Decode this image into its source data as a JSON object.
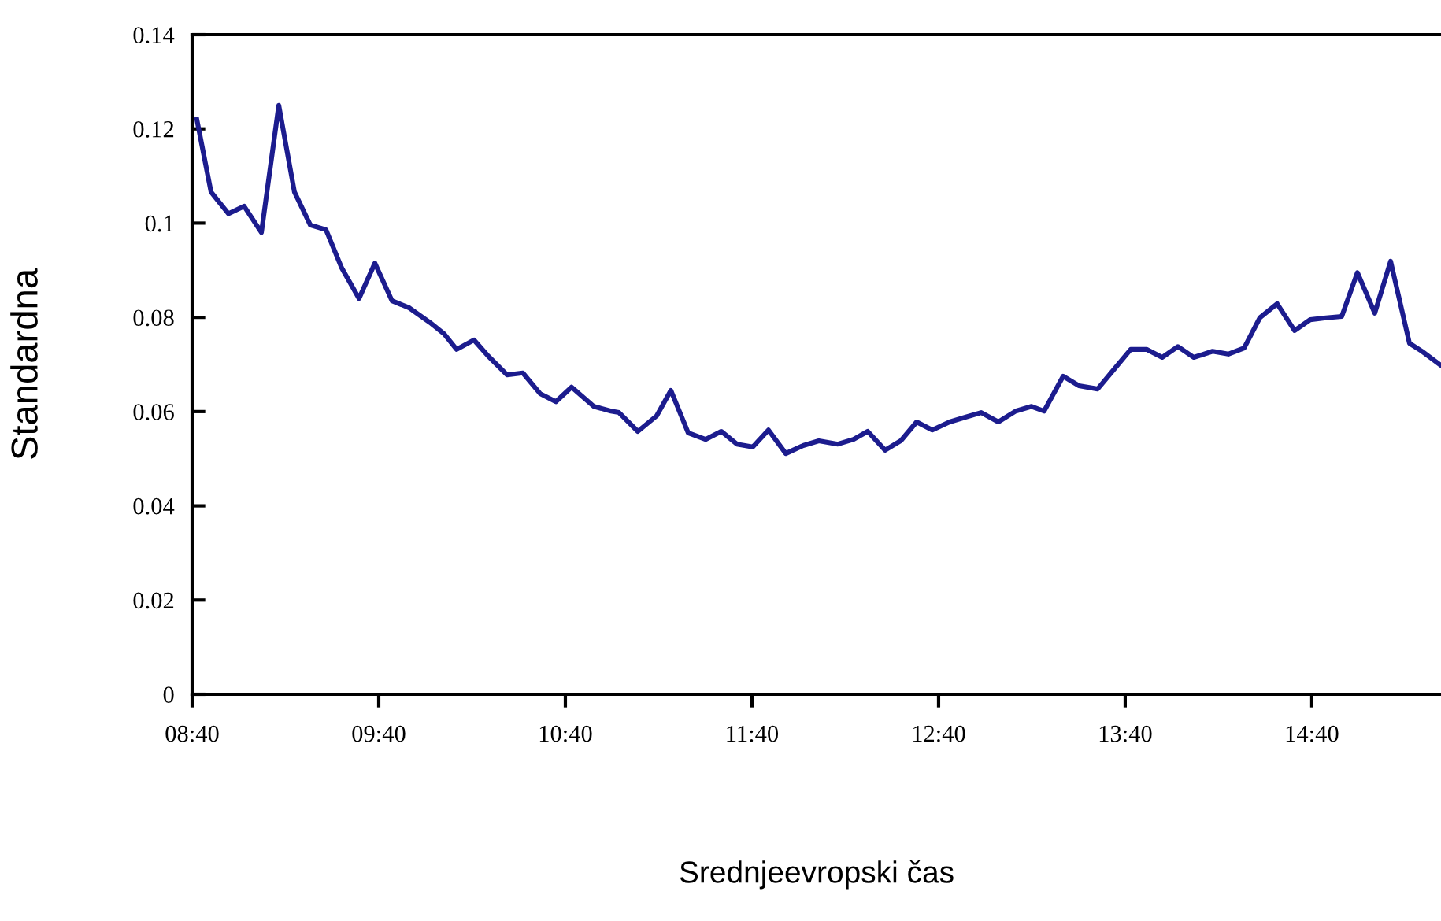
{
  "chart_data": {
    "type": "line",
    "xlabel": "Srednjeevropski čas",
    "ylabel": "Standardna",
    "x": [
      8.692,
      8.768,
      8.861,
      8.945,
      9.038,
      9.131,
      9.215,
      9.3,
      9.384,
      9.468,
      9.561,
      9.646,
      9.738,
      9.831,
      9.941,
      10.017,
      10.084,
      10.177,
      10.253,
      10.354,
      10.439,
      10.532,
      10.616,
      10.7,
      10.819,
      10.911,
      10.954,
      11.055,
      11.156,
      11.232,
      11.325,
      11.418,
      11.502,
      11.586,
      11.671,
      11.755,
      11.848,
      11.941,
      12.025,
      12.127,
      12.211,
      12.287,
      12.38,
      12.464,
      12.549,
      12.633,
      12.726,
      12.81,
      12.895,
      12.987,
      13.08,
      13.165,
      13.232,
      13.334,
      13.418,
      13.519,
      13.603,
      13.696,
      13.781,
      13.865,
      13.949,
      14.034,
      14.135,
      14.219,
      14.304,
      14.388,
      14.481,
      14.574,
      14.658,
      14.743,
      14.827,
      14.911,
      15.004,
      15.089,
      15.19,
      15.257,
      15.359
    ],
    "series": [
      {
        "color": "#1c1c8e",
        "values": [
          0.122,
          0.1066,
          0.102,
          0.1036,
          0.098,
          0.125,
          0.1066,
          0.0996,
          0.0986,
          0.0905,
          0.084,
          0.0915,
          0.0835,
          0.082,
          0.0789,
          0.0765,
          0.0732,
          0.0752,
          0.0718,
          0.0678,
          0.0682,
          0.0638,
          0.0621,
          0.0652,
          0.0611,
          0.0601,
          0.0598,
          0.0558,
          0.0591,
          0.0645,
          0.0555,
          0.0541,
          0.0558,
          0.0531,
          0.0525,
          0.0561,
          0.0511,
          0.0528,
          0.0538,
          0.0531,
          0.0541,
          0.0558,
          0.0518,
          0.0538,
          0.0578,
          0.0561,
          0.0578,
          0.0588,
          0.0598,
          0.0578,
          0.0601,
          0.0611,
          0.0601,
          0.0675,
          0.0655,
          0.0648,
          0.0688,
          0.0732,
          0.0732,
          0.0715,
          0.0738,
          0.0715,
          0.0728,
          0.0722,
          0.0735,
          0.0799,
          0.0829,
          0.0772,
          0.0795,
          0.0799,
          0.0802,
          0.0895,
          0.0809,
          0.0919,
          0.0745,
          0.0728,
          0.0698
        ]
      }
    ],
    "xlim": [
      8.6667,
      15.359
    ],
    "xticks": [
      {
        "value": 8.6667,
        "label": "08:40"
      },
      {
        "value": 9.6667,
        "label": "09:40"
      },
      {
        "value": 10.6667,
        "label": "10:40"
      },
      {
        "value": 11.6667,
        "label": "11:40"
      },
      {
        "value": 12.6667,
        "label": "12:40"
      },
      {
        "value": 13.6667,
        "label": "13:40"
      },
      {
        "value": 14.6667,
        "label": "14:40"
      }
    ],
    "ylim": [
      0,
      0.14
    ],
    "yticks": [
      0,
      0.02,
      0.04,
      0.06,
      0.08,
      {
        "value": 0.1,
        "label": "0.1"
      },
      0.12,
      0.14
    ],
    "grid": false,
    "marker": "none",
    "line_style": "solid"
  }
}
